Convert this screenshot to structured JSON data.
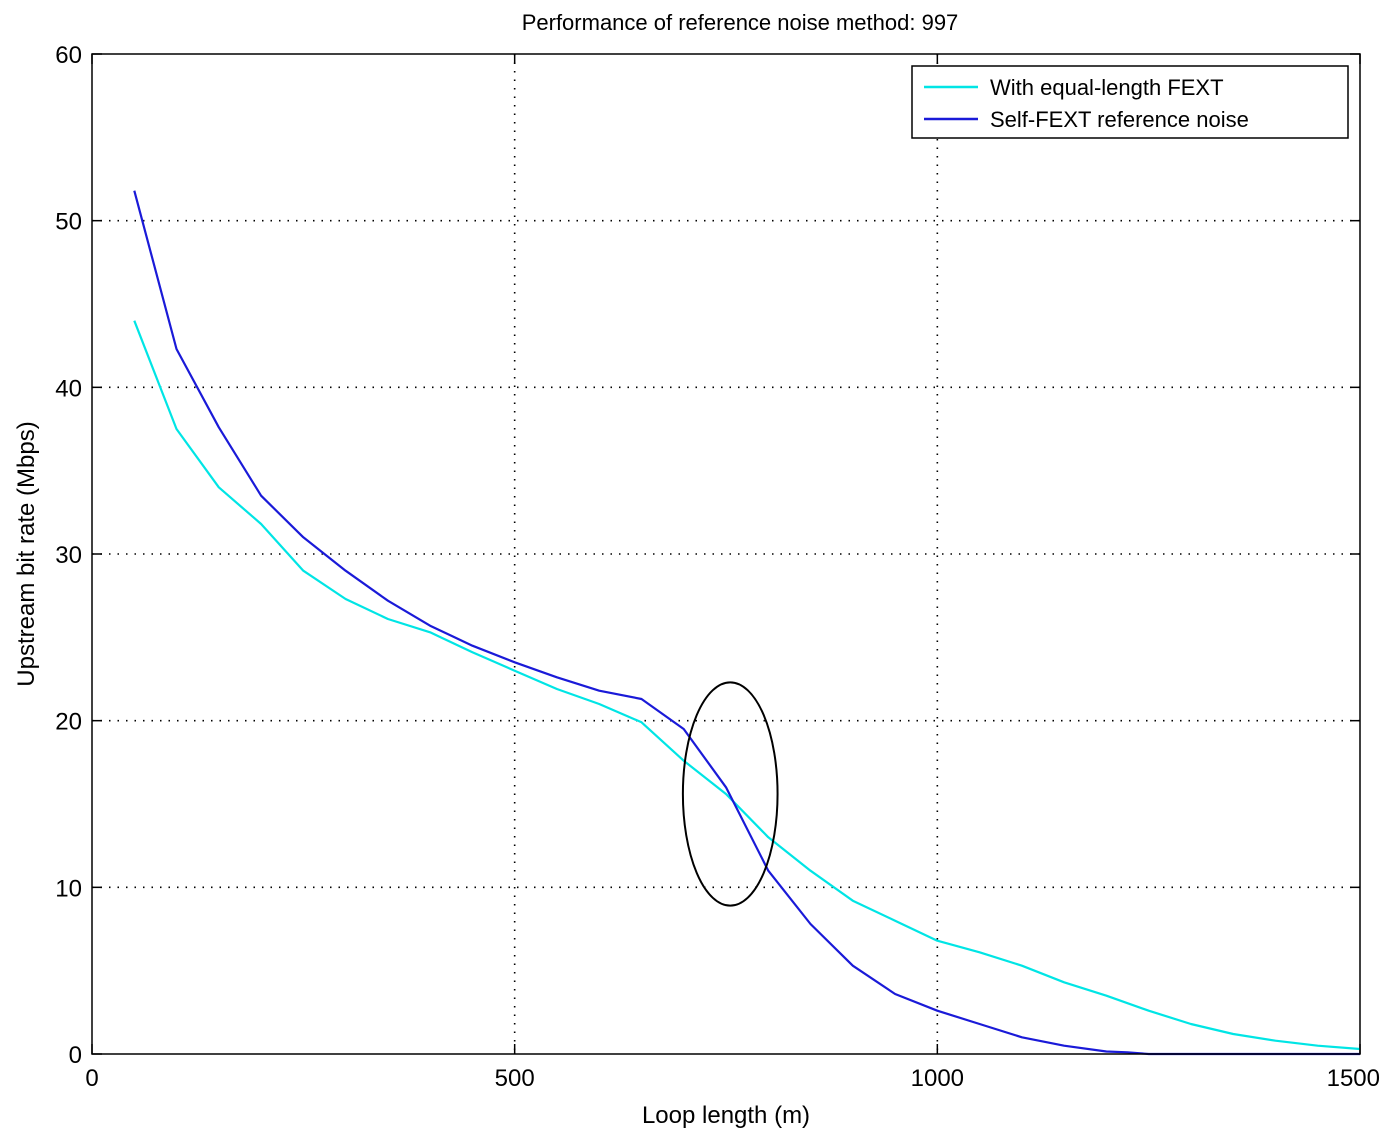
{
  "chart_data": {
    "type": "line",
    "title": "Performance of reference noise method: 997",
    "xlabel": "Loop length (m)",
    "ylabel": "Upstream bit rate (Mbps)",
    "xlim": [
      0,
      1500
    ],
    "ylim": [
      0,
      60
    ],
    "xticks": [
      0,
      500,
      1000,
      1500
    ],
    "yticks": [
      0,
      10,
      20,
      30,
      40,
      50,
      60
    ],
    "grid": true,
    "legend_position": "top-right",
    "series": [
      {
        "name": "With equal-length FEXT",
        "color": "#00e5e5",
        "x": [
          50,
          100,
          150,
          200,
          250,
          300,
          350,
          400,
          450,
          500,
          550,
          600,
          650,
          700,
          750,
          800,
          850,
          900,
          950,
          1000,
          1050,
          1100,
          1150,
          1200,
          1250,
          1300,
          1350,
          1400,
          1450,
          1500
        ],
        "values": [
          44,
          37.5,
          34,
          31.8,
          29,
          27.3,
          26.1,
          25.3,
          24.1,
          23,
          21.9,
          21,
          19.9,
          17.6,
          15.6,
          13,
          11,
          9.2,
          8,
          6.8,
          6.1,
          5.3,
          4.3,
          3.5,
          2.6,
          1.8,
          1.2,
          0.8,
          0.5,
          0.3
        ]
      },
      {
        "name": "Self-FEXT reference noise",
        "color": "#1a1ad8",
        "x": [
          50,
          100,
          150,
          200,
          250,
          300,
          350,
          400,
          450,
          500,
          550,
          600,
          650,
          700,
          750,
          800,
          850,
          900,
          950,
          1000,
          1050,
          1100,
          1150,
          1200,
          1225,
          1250,
          1300,
          1350,
          1400,
          1450,
          1500
        ],
        "values": [
          51.8,
          42.3,
          37.6,
          33.5,
          31,
          29,
          27.2,
          25.7,
          24.5,
          23.5,
          22.6,
          21.8,
          21.3,
          19.5,
          16,
          11,
          7.8,
          5.3,
          3.6,
          2.6,
          1.8,
          1.0,
          0.5,
          0.15,
          0.1,
          0,
          0,
          0,
          0,
          0,
          0
        ]
      }
    ],
    "annotations": [
      {
        "type": "ellipse",
        "cx": 755,
        "cy": 15.6,
        "rx": 56,
        "ry": 6.7
      }
    ]
  }
}
